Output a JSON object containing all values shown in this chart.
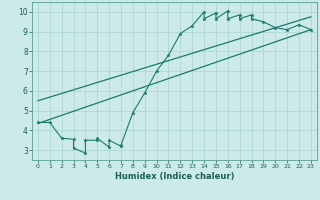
{
  "title": "",
  "xlabel": "Humidex (Indice chaleur)",
  "ylabel": "",
  "bg_color": "#cceae8",
  "grid_color": "#aad4d0",
  "line_color": "#1a7a6e",
  "xlim": [
    -0.5,
    23.5
  ],
  "ylim": [
    2.5,
    10.5
  ],
  "xticks": [
    0,
    1,
    2,
    3,
    4,
    5,
    6,
    7,
    8,
    9,
    10,
    11,
    12,
    13,
    14,
    15,
    16,
    17,
    18,
    19,
    20,
    21,
    22,
    23
  ],
  "yticks": [
    3,
    4,
    5,
    6,
    7,
    8,
    9,
    10
  ],
  "data_x": [
    0,
    1,
    2,
    3,
    3,
    4,
    4,
    5,
    5,
    6,
    6,
    7,
    7,
    8,
    9,
    10,
    11,
    12,
    13,
    14,
    14,
    15,
    15,
    16,
    16,
    17,
    17,
    18,
    18,
    19,
    20,
    21,
    22,
    23
  ],
  "data_y": [
    4.4,
    4.4,
    3.6,
    3.55,
    3.1,
    2.85,
    3.5,
    3.5,
    3.6,
    3.15,
    3.5,
    3.2,
    3.25,
    4.9,
    5.9,
    7.0,
    7.8,
    8.9,
    9.3,
    10.0,
    9.65,
    9.95,
    9.65,
    10.05,
    9.65,
    9.85,
    9.65,
    9.85,
    9.65,
    9.5,
    9.2,
    9.1,
    9.35,
    9.1
  ],
  "line1_x": [
    0,
    23
  ],
  "line1_y": [
    4.35,
    9.1
  ],
  "line2_x": [
    0,
    23
  ],
  "line2_y": [
    5.5,
    9.75
  ]
}
